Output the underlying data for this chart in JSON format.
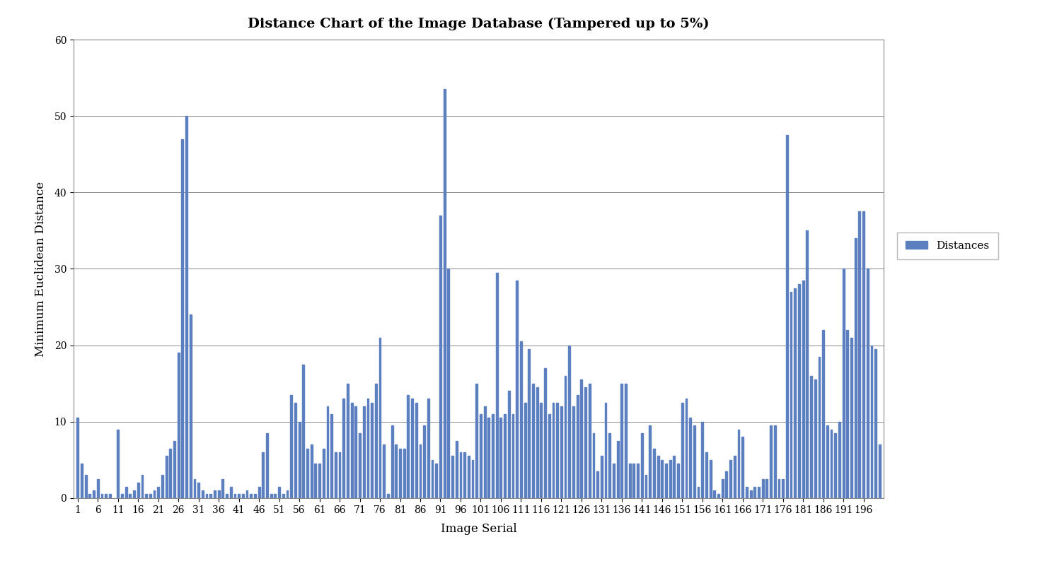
{
  "title": "Distance Chart of the Image Database (Tampered up to 5%)",
  "xlabel": "Image Serial",
  "ylabel": "Minimum Euclidean Distance",
  "ylim": [
    0,
    60
  ],
  "yticks": [
    0,
    10,
    20,
    30,
    40,
    50,
    60
  ],
  "xtick_start": 1,
  "xtick_step": 5,
  "bar_color": "#5B7FBF",
  "legend_label": "Distances",
  "background_color": "#ffffff",
  "values": [
    10.5,
    4.5,
    3.0,
    0.5,
    1.0,
    2.5,
    0.5,
    0.5,
    0.5,
    0.0,
    9.0,
    0.5,
    1.5,
    0.5,
    1.0,
    2.0,
    3.0,
    0.5,
    0.5,
    1.0,
    1.5,
    3.0,
    5.5,
    6.5,
    7.5,
    19.0,
    47.0,
    50.0,
    24.0,
    2.5,
    2.0,
    1.0,
    0.5,
    0.5,
    1.0,
    1.0,
    2.5,
    0.5,
    1.5,
    0.5,
    0.5,
    0.5,
    1.0,
    0.5,
    0.5,
    1.5,
    6.0,
    8.5,
    0.5,
    0.5,
    1.5,
    0.5,
    1.0,
    13.5,
    12.5,
    10.0,
    17.5,
    6.5,
    7.0,
    4.5,
    4.5,
    6.5,
    12.0,
    11.0,
    6.0,
    6.0,
    13.0,
    15.0,
    12.5,
    12.0,
    8.5,
    12.0,
    13.0,
    12.5,
    15.0,
    21.0,
    7.0,
    0.5,
    9.5,
    7.0,
    6.5,
    6.5,
    13.5,
    13.0,
    12.5,
    7.0,
    9.5,
    13.0,
    5.0,
    4.5,
    37.0,
    53.5,
    30.0,
    5.5,
    7.5,
    6.0,
    6.0,
    5.5,
    5.0,
    15.0,
    11.0,
    12.0,
    10.5,
    11.0,
    29.5,
    10.5,
    11.0,
    14.0,
    11.0,
    28.5,
    20.5,
    12.5,
    19.5,
    15.0,
    14.5,
    12.5,
    17.0,
    11.0,
    12.5,
    12.5,
    12.0,
    16.0,
    20.0,
    12.0,
    13.5,
    15.5,
    14.5,
    15.0,
    8.5,
    3.5,
    5.5,
    12.5,
    8.5,
    4.5,
    7.5,
    15.0,
    15.0,
    4.5,
    4.5,
    4.5,
    8.5,
    3.0,
    9.5,
    6.5,
    5.5,
    5.0,
    4.5,
    5.0,
    5.5,
    4.5,
    12.5,
    13.0,
    10.5,
    9.5,
    1.5,
    10.0,
    6.0,
    5.0,
    1.0,
    0.5,
    2.5,
    3.5,
    5.0,
    5.5,
    9.0,
    8.0,
    1.5,
    1.0,
    1.5,
    1.5,
    2.5,
    2.5,
    9.5,
    9.5,
    2.5,
    2.5,
    47.5,
    27.0,
    27.5,
    28.0,
    28.5,
    35.0,
    16.0,
    15.5,
    18.5,
    22.0,
    9.5,
    9.0,
    8.5,
    10.0,
    30.0,
    22.0,
    21.0,
    34.0,
    37.5,
    37.5,
    30.0,
    20.0,
    19.5,
    7.0
  ]
}
